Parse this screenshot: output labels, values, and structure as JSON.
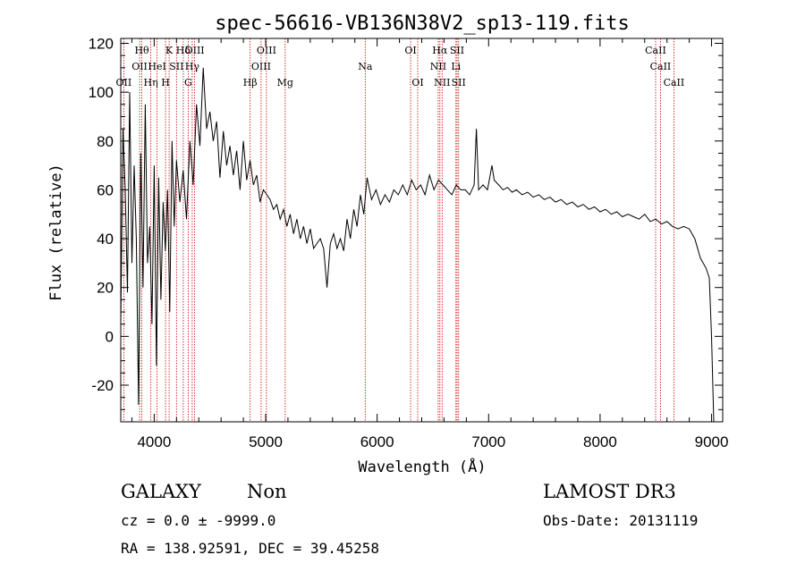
{
  "chart_data": {
    "type": "line",
    "title": "spec-56616-VB136N38V2_sp13-119.fits",
    "xlabel": "Wavelength (Å)",
    "ylabel": "Flux (relative)",
    "xlim": [
      3700,
      9100
    ],
    "ylim": [
      -35,
      122
    ],
    "xticks": [
      4000,
      5000,
      6000,
      7000,
      8000,
      9000
    ],
    "yticks": [
      -20,
      0,
      20,
      40,
      60,
      80,
      100,
      120
    ],
    "grid": false,
    "line_color": "#000000",
    "marker_color": "#cc0000",
    "series": [
      {
        "x": [
          3700,
          3720,
          3740,
          3760,
          3780,
          3800,
          3820,
          3840,
          3860,
          3880,
          3900,
          3920,
          3940,
          3960,
          3980,
          4000,
          4020,
          4040,
          4060,
          4080,
          4100,
          4120,
          4140,
          4160,
          4180,
          4200,
          4230,
          4260,
          4290,
          4320,
          4350,
          4380,
          4410,
          4440,
          4470,
          4500,
          4530,
          4560,
          4590,
          4620,
          4650,
          4680,
          4710,
          4740,
          4770,
          4800,
          4830,
          4860,
          4890,
          4920,
          4950,
          4980,
          5010,
          5040,
          5070,
          5100,
          5130,
          5160,
          5190,
          5220,
          5250,
          5280,
          5310,
          5340,
          5370,
          5400,
          5430,
          5460,
          5490,
          5520,
          5550,
          5580,
          5610,
          5640,
          5670,
          5700,
          5730,
          5760,
          5790,
          5820,
          5850,
          5880,
          5910,
          5950,
          5990,
          6030,
          6070,
          6110,
          6150,
          6190,
          6230,
          6270,
          6310,
          6350,
          6390,
          6430,
          6470,
          6510,
          6550,
          6590,
          6630,
          6670,
          6710,
          6750,
          6790,
          6830,
          6870,
          6890,
          6910,
          6950,
          6990,
          7030,
          7050,
          7090,
          7130,
          7170,
          7210,
          7250,
          7300,
          7350,
          7400,
          7450,
          7500,
          7550,
          7600,
          7650,
          7700,
          7750,
          7800,
          7850,
          7900,
          7950,
          8000,
          8050,
          8100,
          8150,
          8200,
          8250,
          8300,
          8350,
          8400,
          8450,
          8500,
          8550,
          8600,
          8650,
          8700,
          8750,
          8800,
          8850,
          8900,
          8950,
          8980,
          9000,
          9020
        ],
        "y": [
          5,
          85,
          60,
          18,
          100,
          30,
          70,
          40,
          -28,
          75,
          20,
          95,
          30,
          45,
          5,
          70,
          -12,
          65,
          15,
          55,
          35,
          60,
          10,
          80,
          45,
          72,
          55,
          68,
          48,
          80,
          62,
          95,
          78,
          110,
          85,
          92,
          80,
          88,
          65,
          84,
          70,
          78,
          66,
          76,
          60,
          80,
          64,
          72,
          62,
          66,
          55,
          60,
          58,
          56,
          52,
          54,
          48,
          52,
          45,
          50,
          42,
          48,
          40,
          45,
          38,
          44,
          36,
          38,
          40,
          36,
          20,
          38,
          42,
          36,
          40,
          35,
          48,
          40,
          52,
          45,
          58,
          50,
          65,
          56,
          60,
          54,
          58,
          55,
          60,
          58,
          62,
          58,
          64,
          60,
          62,
          58,
          66,
          60,
          64,
          62,
          60,
          58,
          62,
          60,
          60,
          58,
          62,
          85,
          60,
          62,
          60,
          70,
          64,
          62,
          60,
          61,
          59,
          60,
          58,
          59,
          57,
          58,
          56,
          57,
          55,
          56,
          54,
          55,
          53,
          54,
          52,
          53,
          51,
          52,
          50,
          51,
          49,
          50,
          49,
          48,
          50,
          47,
          48,
          46,
          47,
          45,
          44,
          45,
          44,
          40,
          32,
          28,
          24,
          0,
          -35
        ]
      }
    ],
    "line_markers": [
      {
        "x": 3727,
        "label": "OII",
        "row": 2
      },
      {
        "x": 3869,
        "label": "OII",
        "row": 1
      },
      {
        "x": 3889,
        "label": "Hθ",
        "row": 0
      },
      {
        "x": 3970,
        "label": "Hη",
        "row": 2
      },
      {
        "x": 4026,
        "label": "HeI",
        "row": 1
      },
      {
        "x": 4102,
        "label": "H",
        "row": 2
      },
      {
        "x": 4134,
        "label": "K",
        "row": 0
      },
      {
        "x": 4200,
        "label": "SII",
        "row": 1
      },
      {
        "x": 4261,
        "label": "Hδ",
        "row": 0
      },
      {
        "x": 4305,
        "label": "G",
        "row": 2
      },
      {
        "x": 4341,
        "label": "Hγ",
        "row": 1
      },
      {
        "x": 4363,
        "label": "OIII",
        "row": 0
      },
      {
        "x": 4861,
        "label": "Hβ",
        "row": 2
      },
      {
        "x": 4959,
        "label": "OIII",
        "row": 1
      },
      {
        "x": 5007,
        "label": "OIII",
        "row": 0
      },
      {
        "x": 5175,
        "label": "Mg",
        "row": 2
      },
      {
        "x": 5893,
        "label": "Na",
        "row": 1
      },
      {
        "x": 6300,
        "label": "OI",
        "row": 0
      },
      {
        "x": 6364,
        "label": "OI",
        "row": 2
      },
      {
        "x": 6548,
        "label": "NII",
        "row": 1
      },
      {
        "x": 6563,
        "label": "Hα",
        "row": 0
      },
      {
        "x": 6583,
        "label": "NII",
        "row": 2
      },
      {
        "x": 6707,
        "label": "Li",
        "row": 1
      },
      {
        "x": 6717,
        "label": "SII",
        "row": 0
      },
      {
        "x": 6731,
        "label": "SII",
        "row": 2
      },
      {
        "x": 8498,
        "label": "CaII",
        "row": 0
      },
      {
        "x": 8542,
        "label": "CaII",
        "row": 1
      },
      {
        "x": 8662,
        "label": "CaII",
        "row": 2
      }
    ]
  },
  "info": {
    "object_class": "GALAXY",
    "subclass": "Non",
    "survey": "LAMOST DR3",
    "redshift_line": "cz = 0.0 ± -9999.0",
    "obs_date": "Obs-Date: 20131119",
    "coords": "RA = 138.92591, DEC =  39.45258"
  }
}
